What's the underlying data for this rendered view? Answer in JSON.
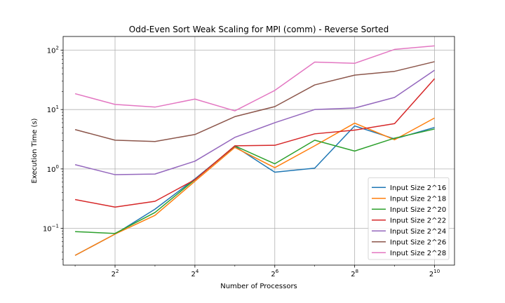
{
  "chart_data": {
    "type": "line",
    "title": "Odd-Even Sort Weak Scaling for MPI (comm) - Reverse Sorted",
    "xlabel": "Number of Processors",
    "ylabel": "Execution Time (s)",
    "xscale": "log2",
    "yscale": "log10",
    "xlim_exp": [
      0.7,
      10.5
    ],
    "ylim": [
      0.024,
      170
    ],
    "x_exponents": [
      1,
      2,
      3,
      4,
      5,
      6,
      7,
      8,
      9,
      10
    ],
    "x_ticks": [
      {
        "base": "2",
        "exp": "2",
        "value_exp": 2
      },
      {
        "base": "2",
        "exp": "4",
        "value_exp": 4
      },
      {
        "base": "2",
        "exp": "6",
        "value_exp": 6
      },
      {
        "base": "2",
        "exp": "8",
        "value_exp": 8
      },
      {
        "base": "2",
        "exp": "10",
        "value_exp": 10
      }
    ],
    "y_ticks": [
      {
        "base": "10",
        "exp": "−1",
        "value": 0.1
      },
      {
        "base": "10",
        "exp": "0",
        "value": 1
      },
      {
        "base": "10",
        "exp": "1",
        "value": 10
      },
      {
        "base": "10",
        "exp": "2",
        "value": 100
      }
    ],
    "grid": true,
    "legend_position": "bottom-right",
    "series": [
      {
        "name": "Input Size 2^16",
        "color": "#1f77b4",
        "values": [
          0.035,
          0.08,
          0.21,
          0.68,
          2.4,
          0.88,
          1.03,
          5.3,
          3.2,
          5.0
        ]
      },
      {
        "name": "Input Size 2^18",
        "color": "#ff7f0e",
        "values": [
          0.035,
          0.08,
          0.165,
          0.62,
          2.3,
          1.05,
          2.45,
          5.9,
          3.1,
          7.2
        ]
      },
      {
        "name": "Input Size 2^20",
        "color": "#2ca02c",
        "values": [
          0.088,
          0.082,
          0.185,
          0.66,
          2.45,
          1.22,
          3.05,
          2.0,
          3.3,
          4.7
        ]
      },
      {
        "name": "Input Size 2^22",
        "color": "#d62728",
        "values": [
          0.305,
          0.228,
          0.285,
          0.66,
          2.45,
          2.5,
          3.9,
          4.5,
          5.8,
          33
        ]
      },
      {
        "name": "Input Size 2^24",
        "color": "#9467bd",
        "values": [
          1.18,
          0.8,
          0.82,
          1.35,
          3.4,
          6.0,
          10.0,
          10.6,
          16,
          46
        ]
      },
      {
        "name": "Input Size 2^26",
        "color": "#8c564b",
        "values": [
          4.6,
          3.05,
          2.9,
          3.8,
          7.6,
          11.2,
          26,
          38,
          44,
          64
        ]
      },
      {
        "name": "Input Size 2^28",
        "color": "#e377c2",
        "values": [
          18.5,
          12.2,
          11.0,
          15.0,
          9.5,
          21,
          63,
          60,
          103,
          118
        ]
      }
    ]
  }
}
